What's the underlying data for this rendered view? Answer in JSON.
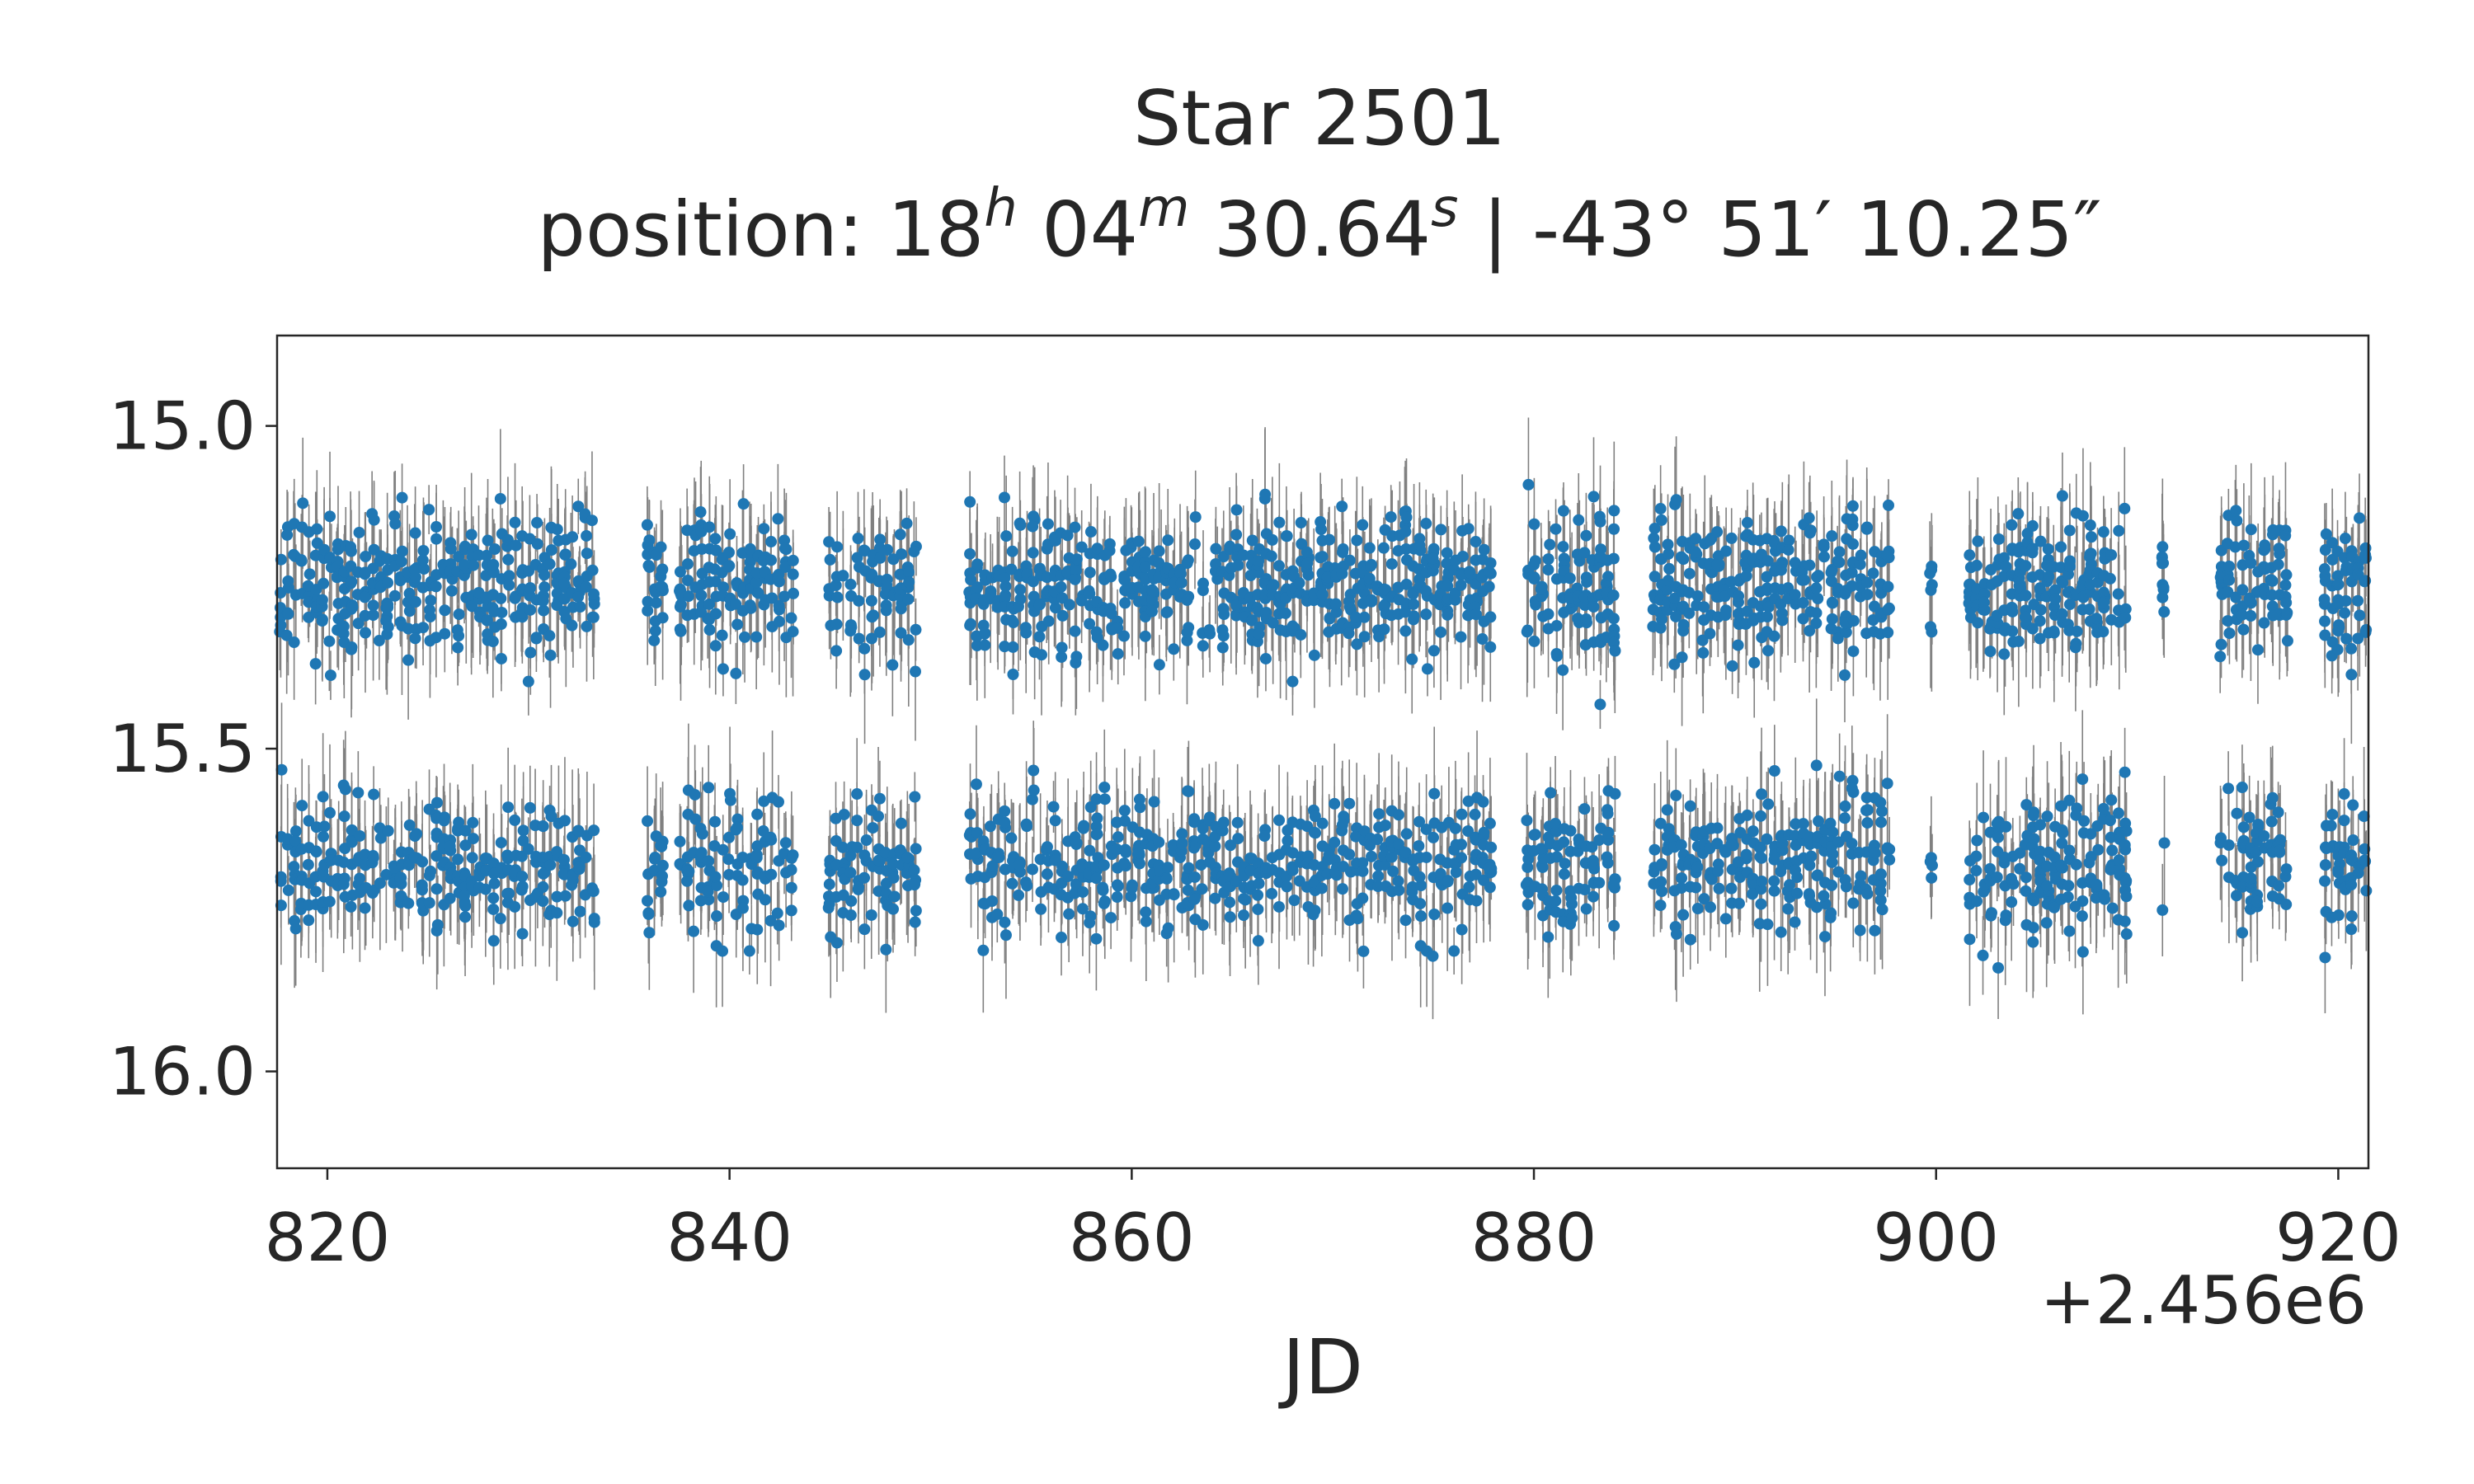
{
  "chart_data": {
    "type": "scatter",
    "title": "Star 2501",
    "subtitle": {
      "prefix": "position: ",
      "ra_h": "18",
      "ra_h_unit": "h",
      "ra_m": "04",
      "ra_m_unit": "m",
      "ra_s": "30.64",
      "ra_s_unit": "s",
      "separator": " | ",
      "dec": "-43° 51′ 10.25″"
    },
    "xlabel": "JD",
    "x_offset_label": "+2.456e6",
    "ylabel": "",
    "xlim": [
      817.5,
      921.5
    ],
    "ylim": [
      16.15,
      14.86
    ],
    "y_inverted": true,
    "x_ticks": [
      820,
      840,
      860,
      880,
      900,
      920
    ],
    "x_tick_labels": [
      "820",
      "840",
      "860",
      "880",
      "900",
      "920"
    ],
    "y_ticks": [
      15.0,
      15.5,
      16.0
    ],
    "y_tick_labels": [
      "15.0",
      "15.5",
      "16.0"
    ],
    "grid": false,
    "colors": {
      "marker": "#1f77b4",
      "errorbar": "#808080"
    },
    "series": [
      {
        "observing_blocks": [
          [
            817.5,
            833.4
          ],
          [
            835.8,
            836.8
          ],
          [
            837.4,
            843.3
          ],
          [
            844.8,
            849.4
          ],
          [
            851.8,
            878.0
          ],
          [
            879.5,
            884.2
          ],
          [
            885.8,
            897.8
          ],
          [
            899.6,
            899.9
          ],
          [
            901.5,
            909.6
          ],
          [
            911.2,
            911.4
          ],
          [
            914.0,
            917.6
          ],
          [
            919.2,
            921.5
          ]
        ],
        "bright_state_center_mag": 15.25,
        "faint_state_center_mag": 15.68,
        "state_spread_mag": 0.25,
        "typical_error_mag": 0.06
      }
    ]
  }
}
